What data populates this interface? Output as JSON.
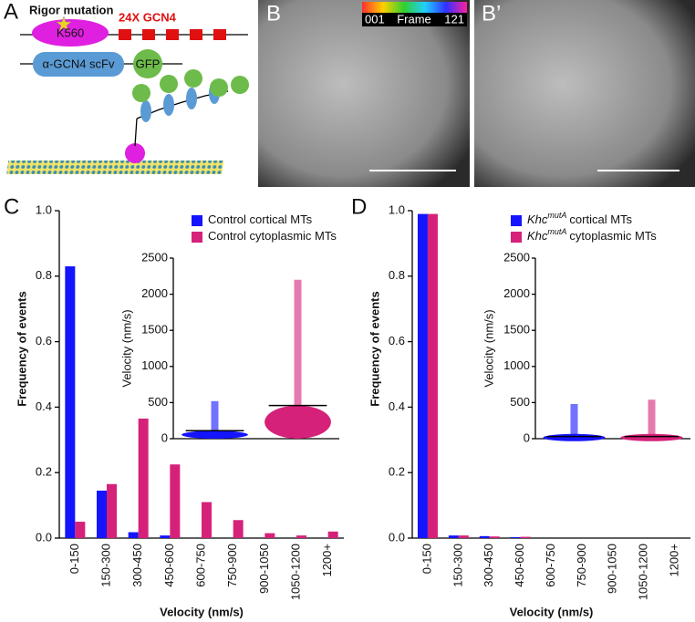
{
  "panels": {
    "a": "A",
    "b": "B",
    "b2": "B’",
    "c": "C",
    "d": "D"
  },
  "diagram": {
    "rigor": "Rigor mutation",
    "motor": "K560",
    "tag": "24X GCN4",
    "scfv": "α-GCN4 scFv",
    "gfp": "GFP"
  },
  "movie": {
    "start": "001",
    "frame": "Frame",
    "end": "121"
  },
  "chart_data": [
    {
      "type": "bar",
      "ylabel": "Frequency of events",
      "xlabel": "Velocity (nm/s)",
      "categories": [
        "0-150",
        "150-300",
        "300-450",
        "450-600",
        "600-750",
        "750-900",
        "900-1050",
        "1050-1200",
        "1200+"
      ],
      "series": [
        {
          "name_parts": [
            "Control cortical MTs"
          ],
          "color": "#1414ff",
          "values": [
            0.83,
            0.145,
            0.018,
            0.008,
            0,
            0,
            0,
            0,
            0
          ]
        },
        {
          "name_parts": [
            "Control cytoplasmic MTs"
          ],
          "color": "#d6217a",
          "values": [
            0.05,
            0.165,
            0.365,
            0.225,
            0.11,
            0.055,
            0.015,
            0.008,
            0.02
          ]
        }
      ],
      "ylim": [
        0,
        1
      ],
      "yticks": [
        {
          "value": 0,
          "label": "0.0"
        },
        0.2,
        0.4,
        0.6,
        0.8,
        {
          "value": 1,
          "label": "1.0"
        }
      ],
      "inset": {
        "ylabel": "Velocity (nm/s)",
        "ylim": [
          0,
          2500
        ],
        "yticks": [
          0,
          500,
          1000,
          1500,
          2000,
          2500
        ],
        "groups": [
          {
            "color": "#1414ff",
            "mean": 110,
            "max": 520
          },
          {
            "color": "#d6217a",
            "mean": 460,
            "max": 2200
          }
        ]
      }
    },
    {
      "type": "bar",
      "ylabel": "Frequency of events",
      "xlabel": "Velocity (nm/s)",
      "categories": [
        "0-150",
        "150-300",
        "300-450",
        "450-600",
        "600-750",
        "750-900",
        "900-1050",
        "1050-1200",
        "1200+"
      ],
      "series": [
        {
          "name_parts": [
            "Khc",
            "mutA",
            "cortical MTs"
          ],
          "color": "#1414ff",
          "values": [
            0.99,
            0.008,
            0.006,
            0.003,
            0,
            0,
            0,
            0,
            0
          ]
        },
        {
          "name_parts": [
            "Khc",
            "mutA",
            "cytoplasmic MTs"
          ],
          "color": "#d6217a",
          "values": [
            0.99,
            0.008,
            0.005,
            0.004,
            0,
            0,
            0,
            0,
            0
          ]
        }
      ],
      "ylim": [
        0,
        1
      ],
      "yticks": [
        {
          "value": 0,
          "label": "0.0"
        },
        0.2,
        0.4,
        0.6,
        0.8,
        {
          "value": 1,
          "label": "1.0"
        }
      ],
      "inset": {
        "ylabel": "Velocity (nm/s)",
        "ylim": [
          0,
          2500
        ],
        "yticks": [
          0,
          500,
          1000,
          1500,
          2000,
          2500
        ],
        "groups": [
          {
            "color": "#1414ff",
            "mean": 30,
            "max": 480
          },
          {
            "color": "#d6217a",
            "mean": 30,
            "max": 540
          }
        ]
      }
    }
  ]
}
